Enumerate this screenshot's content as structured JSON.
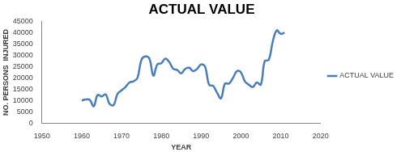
{
  "chart_data": {
    "type": "line",
    "title": "ACTUAL VALUE",
    "x_label": "YEAR",
    "y_label": "NO. PERSONS  INJURED",
    "x": [
      1960,
      1961,
      1962,
      1963,
      1964,
      1965,
      1966,
      1967,
      1968,
      1969,
      1970,
      1971,
      1972,
      1973,
      1974,
      1975,
      1976,
      1977,
      1978,
      1979,
      1980,
      1981,
      1982,
      1983,
      1984,
      1985,
      1986,
      1987,
      1988,
      1989,
      1990,
      1991,
      1992,
      1993,
      1994,
      1995,
      1996,
      1997,
      1998,
      1999,
      2000,
      2001,
      2002,
      2003,
      2004,
      2005,
      2006,
      2007,
      2008,
      2009,
      2010,
      2011
    ],
    "series": [
      {
        "name": "ACTUAL VALUE",
        "color": "#4a7ebb",
        "marker": "none",
        "line_style": "solid",
        "values": [
          10000,
          10500,
          10300,
          7500,
          12500,
          11800,
          12800,
          8500,
          8000,
          13000,
          14500,
          16000,
          18000,
          18500,
          20000,
          28000,
          29500,
          28500,
          21000,
          26000,
          26500,
          28500,
          27000,
          24000,
          23500,
          22000,
          24000,
          24500,
          23000,
          24000,
          26000,
          25000,
          17000,
          16500,
          13500,
          11000,
          17500,
          17500,
          20000,
          23000,
          22500,
          18500,
          17000,
          16000,
          18000,
          17000,
          27500,
          28000,
          36000,
          41000,
          39500,
          40000
        ]
      }
    ],
    "xlim": [
      1950,
      2020
    ],
    "xticks": [
      1950,
      1960,
      1970,
      1980,
      1990,
      2000,
      2010,
      2020
    ],
    "ylim": [
      0,
      45000
    ],
    "yticks": [
      0,
      5000,
      10000,
      15000,
      20000,
      25000,
      30000,
      35000,
      40000,
      45000
    ],
    "grid": false,
    "legend": "right"
  }
}
